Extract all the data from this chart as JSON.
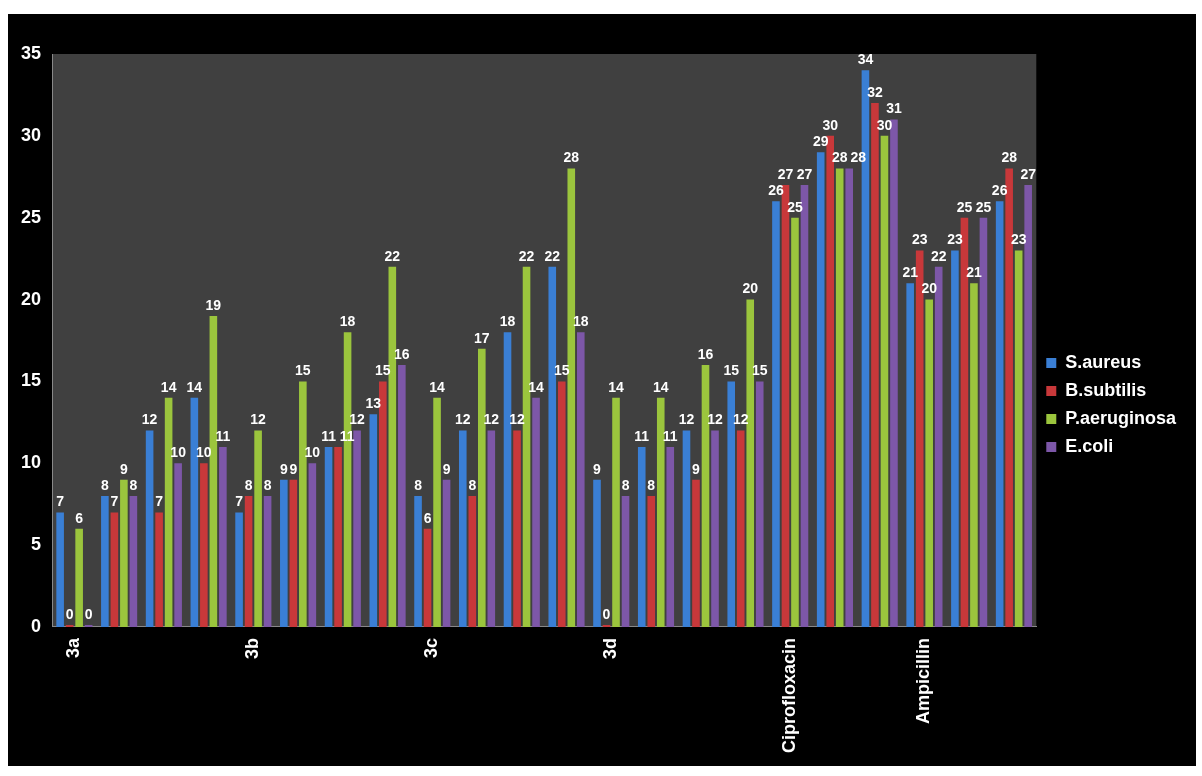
{
  "chart_data": {
    "type": "bar",
    "categories": [
      "3a",
      null,
      null,
      null,
      "3b",
      null,
      null,
      null,
      "3c",
      null,
      null,
      null,
      "3d",
      null,
      null,
      null,
      "Ciprofloxacin",
      null,
      null,
      "Ampicillin",
      null,
      null
    ],
    "series": [
      {
        "name": "S.aureus",
        "color": "#3a7fd5",
        "values": [
          7,
          8,
          12,
          14,
          7,
          9,
          11,
          13,
          8,
          12,
          18,
          22,
          9,
          11,
          12,
          15,
          26,
          29,
          34,
          21,
          23,
          26
        ]
      },
      {
        "name": "B.subtilis",
        "color": "#c8383a",
        "values": [
          0,
          7,
          7,
          10,
          8,
          9,
          11,
          15,
          6,
          8,
          12,
          15,
          0,
          8,
          9,
          12,
          27,
          30,
          32,
          23,
          25,
          28
        ]
      },
      {
        "name": "P.aeruginosa",
        "color": "#9bc53d",
        "values": [
          6,
          9,
          14,
          19,
          12,
          15,
          18,
          22,
          14,
          17,
          22,
          28,
          14,
          14,
          16,
          20,
          25,
          28,
          30,
          20,
          21,
          23
        ]
      },
      {
        "name": "E.coli",
        "color": "#7d57a8",
        "values": [
          0,
          8,
          10,
          11,
          8,
          10,
          12,
          16,
          9,
          12,
          14,
          18,
          8,
          11,
          12,
          15,
          27,
          28,
          31,
          22,
          25,
          27
        ]
      }
    ],
    "ylim": [
      0,
      35
    ],
    "yticks": [
      0,
      5,
      10,
      15,
      20,
      25,
      30,
      35
    ],
    "grid": false,
    "legend": "right",
    "data_labels": true
  }
}
